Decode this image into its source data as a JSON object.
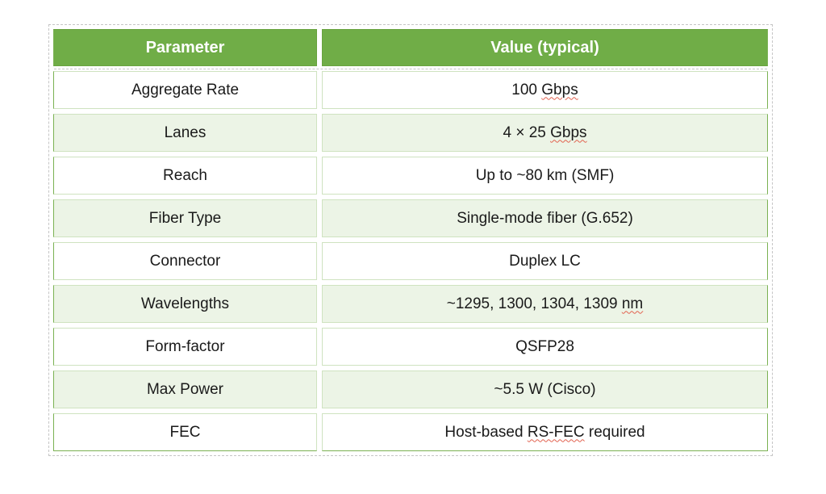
{
  "theme": {
    "header_bg": "#70ad47",
    "header_border": "#68a33e",
    "header_text": "#ffffff",
    "row_bg": "#ffffff",
    "row_alt_bg": "#ecf4e6",
    "border_inner": "#cfe3c0",
    "border_outer": "#7ab152",
    "boundary_dash": "#c5c5c5",
    "spellcheck": "#e2614f"
  },
  "table": {
    "columns": [
      {
        "label": "Parameter"
      },
      {
        "label": "Value (typical)"
      }
    ],
    "rows": [
      {
        "param": "Aggregate Rate",
        "value_pre": "100 ",
        "value_misspelled": "Gbps",
        "value_post": ""
      },
      {
        "param": "Lanes",
        "value_pre": "4 × 25 ",
        "value_misspelled": "Gbps",
        "value_post": ""
      },
      {
        "param": "Reach",
        "value_pre": "Up to ~80 km (SMF)",
        "value_misspelled": "",
        "value_post": ""
      },
      {
        "param": "Fiber Type",
        "value_pre": "Single-mode fiber (G.652)",
        "value_misspelled": "",
        "value_post": ""
      },
      {
        "param": "Connector",
        "value_pre": "Duplex LC",
        "value_misspelled": "",
        "value_post": ""
      },
      {
        "param": "Wavelengths",
        "value_pre": "~1295, 1300, 1304, 1309 ",
        "value_misspelled": "nm",
        "value_post": ""
      },
      {
        "param": "Form-factor",
        "value_pre": "QSFP28",
        "value_misspelled": "",
        "value_post": ""
      },
      {
        "param": "Max Power",
        "value_pre": "~5.5 W (Cisco)",
        "value_misspelled": "",
        "value_post": ""
      },
      {
        "param": "FEC",
        "value_pre": "Host-based ",
        "value_misspelled": "RS-FEC",
        "value_post": " required"
      }
    ]
  }
}
